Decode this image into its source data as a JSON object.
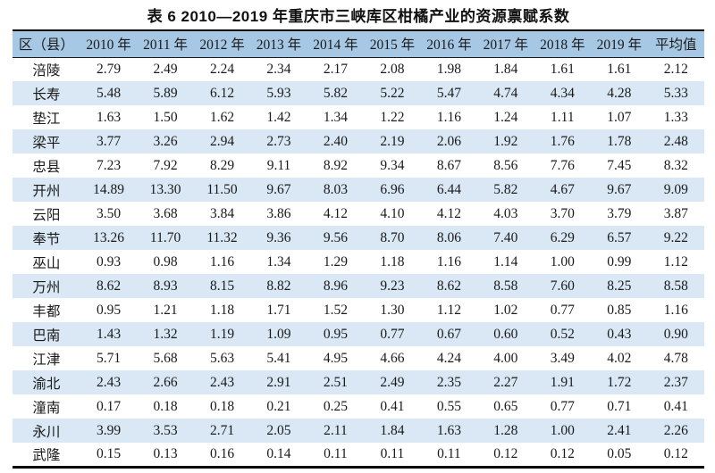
{
  "title": "表 6  2010—2019 年重庆市三峡库区柑橘产业的资源禀赋系数",
  "colors": {
    "header_bg": "#a6c8e4",
    "stripe_bg": "#d9e8f4",
    "rule": "#000000",
    "text": "#1a1a1a"
  },
  "table": {
    "columns": [
      "区（县）",
      "2010 年",
      "2011 年",
      "2012 年",
      "2013 年",
      "2014 年",
      "2015 年",
      "2016 年",
      "2017 年",
      "2018 年",
      "2019 年",
      "平均值"
    ],
    "rows": [
      {
        "district": "涪陵",
        "values": [
          "2.79",
          "2.49",
          "2.24",
          "2.34",
          "2.17",
          "2.08",
          "1.98",
          "1.84",
          "1.61",
          "1.61"
        ],
        "average": "2.12"
      },
      {
        "district": "长寿",
        "values": [
          "5.48",
          "5.89",
          "6.12",
          "5.93",
          "5.82",
          "5.22",
          "5.47",
          "4.74",
          "4.34",
          "4.28"
        ],
        "average": "5.33"
      },
      {
        "district": "垫江",
        "values": [
          "1.63",
          "1.50",
          "1.62",
          "1.42",
          "1.34",
          "1.22",
          "1.16",
          "1.24",
          "1.11",
          "1.07"
        ],
        "average": "1.33"
      },
      {
        "district": "梁平",
        "values": [
          "3.77",
          "3.26",
          "2.94",
          "2.73",
          "2.40",
          "2.19",
          "2.06",
          "1.92",
          "1.76",
          "1.78"
        ],
        "average": "2.48"
      },
      {
        "district": "忠县",
        "values": [
          "7.23",
          "7.92",
          "8.29",
          "9.11",
          "8.92",
          "9.34",
          "8.67",
          "8.56",
          "7.76",
          "7.45"
        ],
        "average": "8.32"
      },
      {
        "district": "开州",
        "values": [
          "14.89",
          "13.30",
          "11.50",
          "9.67",
          "8.03",
          "6.96",
          "6.44",
          "5.82",
          "4.67",
          "9.67"
        ],
        "average": "9.09"
      },
      {
        "district": "云阳",
        "values": [
          "3.50",
          "3.68",
          "3.84",
          "3.86",
          "4.12",
          "4.10",
          "4.12",
          "4.03",
          "3.70",
          "3.79"
        ],
        "average": "3.87"
      },
      {
        "district": "奉节",
        "values": [
          "13.26",
          "11.70",
          "11.32",
          "9.36",
          "9.56",
          "8.70",
          "8.06",
          "7.40",
          "6.29",
          "6.57"
        ],
        "average": "9.22"
      },
      {
        "district": "巫山",
        "values": [
          "0.93",
          "0.98",
          "1.16",
          "1.34",
          "1.29",
          "1.18",
          "1.16",
          "1.14",
          "1.00",
          "0.99"
        ],
        "average": "1.12"
      },
      {
        "district": "万州",
        "values": [
          "8.62",
          "8.93",
          "8.15",
          "8.82",
          "8.96",
          "9.23",
          "8.62",
          "8.58",
          "7.60",
          "8.25"
        ],
        "average": "8.58"
      },
      {
        "district": "丰都",
        "values": [
          "0.95",
          "1.21",
          "1.18",
          "1.71",
          "1.52",
          "1.30",
          "1.12",
          "1.02",
          "0.77",
          "0.85"
        ],
        "average": "1.16"
      },
      {
        "district": "巴南",
        "values": [
          "1.43",
          "1.32",
          "1.19",
          "1.09",
          "0.95",
          "0.77",
          "0.67",
          "0.60",
          "0.52",
          "0.43"
        ],
        "average": "0.90"
      },
      {
        "district": "江津",
        "values": [
          "5.71",
          "5.68",
          "5.63",
          "5.41",
          "4.95",
          "4.66",
          "4.24",
          "4.00",
          "3.49",
          "4.02"
        ],
        "average": "4.78"
      },
      {
        "district": "渝北",
        "values": [
          "2.43",
          "2.66",
          "2.43",
          "2.91",
          "2.51",
          "2.49",
          "2.35",
          "2.27",
          "1.91",
          "1.72"
        ],
        "average": "2.37"
      },
      {
        "district": "潼南",
        "values": [
          "0.17",
          "0.18",
          "0.18",
          "0.21",
          "0.25",
          "0.41",
          "0.55",
          "0.65",
          "0.77",
          "0.71"
        ],
        "average": "0.41"
      },
      {
        "district": "永川",
        "values": [
          "3.99",
          "3.53",
          "2.71",
          "2.05",
          "2.11",
          "1.84",
          "1.63",
          "1.28",
          "1.00",
          "2.41"
        ],
        "average": "2.26"
      },
      {
        "district": "武隆",
        "values": [
          "0.15",
          "0.13",
          "0.16",
          "0.14",
          "0.11",
          "0.11",
          "0.11",
          "0.12",
          "0.12",
          "0.05"
        ],
        "average": "0.12"
      }
    ]
  }
}
